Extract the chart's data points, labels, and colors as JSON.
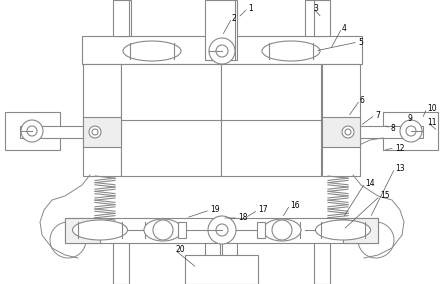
{
  "bg_color": "#ffffff",
  "lc": "#aaaaaa",
  "lc_dark": "#888888",
  "lw": 0.8,
  "fig_w": 4.43,
  "fig_h": 2.84,
  "label_fs": 5.5
}
